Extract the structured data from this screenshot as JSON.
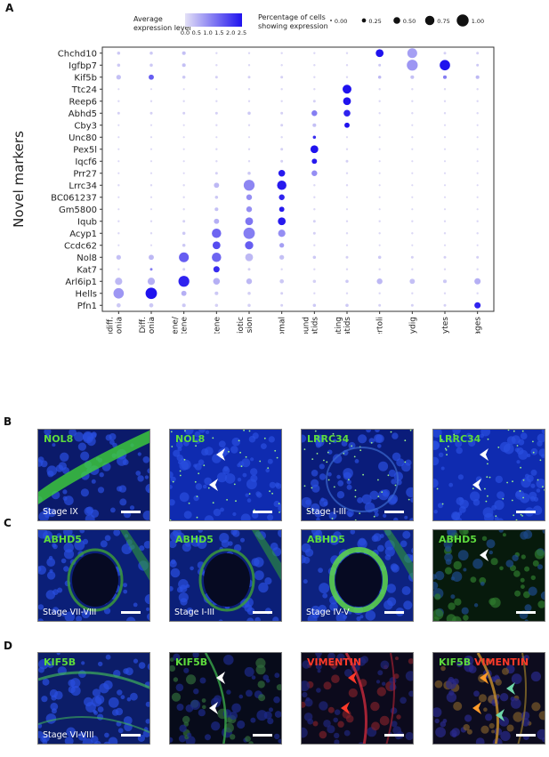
{
  "panels": {
    "a": "A",
    "b": "B",
    "c": "C",
    "d": "D"
  },
  "chart_data": {
    "type": "dotplot",
    "ylabel": "Novel markers",
    "legend_color_title": [
      "Average",
      "expression level"
    ],
    "legend_color_ticks": [
      "0.0",
      "0.5",
      "1.0",
      "1.5",
      "2.0",
      "2.5"
    ],
    "legend_size_title": [
      "Percentage of cells",
      "showing expression"
    ],
    "legend_size_ticks": [
      "0.00",
      "0.25",
      "0.50",
      "0.75",
      "1.00"
    ],
    "legend_size_values": [
      0.0,
      0.25,
      0.5,
      0.75,
      1.0
    ],
    "color_range": [
      0,
      2.5
    ],
    "colors": {
      "low": "#e4e1f6",
      "high": "#1f12ee"
    },
    "genes": [
      "Chchd10",
      "Igfbp7",
      "Kif5b",
      "Ttc24",
      "Reep6",
      "Abhd5",
      "Cby3",
      "Unc80",
      "Pex5l",
      "Iqcf6",
      "Prr27",
      "Lrrc34",
      "BC061237",
      "Gm5800",
      "Iqub",
      "Acyp1",
      "Ccdc62",
      "Nol8",
      "Kat7",
      "Arl6ip1",
      "Hells",
      "Pfn1"
    ],
    "categories": [
      [
        "Undiff.",
        "spermatogonia"
      ],
      [
        "Diff.",
        "spermatogonia"
      ],
      [
        "Leptotene/",
        "zygotene"
      ],
      [
        "Pachytene"
      ],
      [
        "Meiotic",
        "division"
      ],
      [
        "Acrosomal"
      ],
      [
        "Round",
        "spermatids"
      ],
      [
        "Elongating",
        "spermatids"
      ],
      [
        "Sertoli"
      ],
      [
        "Leydig"
      ],
      [
        "Telocytes"
      ],
      [
        "Macrophages"
      ]
    ],
    "percent": [
      [
        0.15,
        0.15,
        0.2,
        0.05,
        0.05,
        0.05,
        0.05,
        0.05,
        0.6,
        0.8,
        0.1,
        0.1
      ],
      [
        0.15,
        0.15,
        0.2,
        0.05,
        0.05,
        0.05,
        0.05,
        0.05,
        0.1,
        0.9,
        0.85,
        0.1
      ],
      [
        0.3,
        0.35,
        0.15,
        0.1,
        0.1,
        0.1,
        0.05,
        0.05,
        0.15,
        0.2,
        0.2,
        0.2
      ],
      [
        0.03,
        0.03,
        0.03,
        0.03,
        0.05,
        0.05,
        0.05,
        0.7,
        0.05,
        0.05,
        0.05,
        0.05
      ],
      [
        0.05,
        0.05,
        0.05,
        0.05,
        0.05,
        0.05,
        0.1,
        0.6,
        0.05,
        0.05,
        0.05,
        0.05
      ],
      [
        0.1,
        0.1,
        0.1,
        0.1,
        0.15,
        0.1,
        0.4,
        0.5,
        0.05,
        0.05,
        0.05,
        0.05
      ],
      [
        0.03,
        0.03,
        0.03,
        0.05,
        0.05,
        0.1,
        0.2,
        0.35,
        0.03,
        0.03,
        0.03,
        0.03
      ],
      [
        0.03,
        0.03,
        0.03,
        0.03,
        0.03,
        0.05,
        0.15,
        0.03,
        0.03,
        0.03,
        0.03,
        0.03
      ],
      [
        0.03,
        0.03,
        0.03,
        0.05,
        0.05,
        0.1,
        0.6,
        0.05,
        0.03,
        0.03,
        0.03,
        0.03
      ],
      [
        0.03,
        0.03,
        0.03,
        0.05,
        0.05,
        0.1,
        0.35,
        0.1,
        0.03,
        0.03,
        0.03,
        0.03
      ],
      [
        0.03,
        0.03,
        0.03,
        0.1,
        0.15,
        0.5,
        0.4,
        0.05,
        0.03,
        0.03,
        0.03,
        0.03
      ],
      [
        0.05,
        0.05,
        0.05,
        0.35,
        0.9,
        0.75,
        0.05,
        0.05,
        0.03,
        0.03,
        0.03,
        0.03
      ],
      [
        0.03,
        0.03,
        0.05,
        0.15,
        0.4,
        0.4,
        0.05,
        0.03,
        0.03,
        0.03,
        0.03,
        0.03
      ],
      [
        0.03,
        0.03,
        0.05,
        0.2,
        0.4,
        0.35,
        0.05,
        0.03,
        0.03,
        0.03,
        0.03,
        0.03
      ],
      [
        0.05,
        0.05,
        0.1,
        0.35,
        0.6,
        0.6,
        0.1,
        0.05,
        0.05,
        0.05,
        0.05,
        0.05
      ],
      [
        0.05,
        0.05,
        0.15,
        0.75,
        0.95,
        0.55,
        0.1,
        0.05,
        0.05,
        0.05,
        0.05,
        0.05
      ],
      [
        0.03,
        0.03,
        0.15,
        0.6,
        0.65,
        0.3,
        0.05,
        0.03,
        0.03,
        0.03,
        0.03,
        0.03
      ],
      [
        0.3,
        0.35,
        0.8,
        0.75,
        0.6,
        0.3,
        0.15,
        0.1,
        0.15,
        0.1,
        0.1,
        0.1
      ],
      [
        0.05,
        0.1,
        0.1,
        0.45,
        0.1,
        0.05,
        0.05,
        0.05,
        0.05,
        0.05,
        0.05,
        0.05
      ],
      [
        0.55,
        0.55,
        0.9,
        0.5,
        0.4,
        0.25,
        0.15,
        0.15,
        0.4,
        0.35,
        0.2,
        0.45
      ],
      [
        0.85,
        0.95,
        0.35,
        0.2,
        0.15,
        0.1,
        0.05,
        0.05,
        0.05,
        0.05,
        0.05,
        0.05
      ],
      [
        0.25,
        0.25,
        0.2,
        0.15,
        0.15,
        0.1,
        0.15,
        0.15,
        0.1,
        0.1,
        0.1,
        0.45
      ]
    ],
    "expression": [
      [
        0.3,
        0.3,
        0.4,
        0.1,
        0.1,
        0.1,
        0.1,
        0.1,
        2.5,
        0.8,
        0.2,
        0.2
      ],
      [
        0.3,
        0.3,
        0.4,
        0.1,
        0.1,
        0.1,
        0.1,
        0.1,
        0.3,
        0.9,
        2.5,
        0.3
      ],
      [
        0.4,
        1.6,
        0.3,
        0.2,
        0.2,
        0.2,
        0.1,
        0.1,
        0.5,
        0.4,
        1.2,
        0.5
      ],
      [
        0.1,
        0.1,
        0.1,
        0.1,
        0.1,
        0.1,
        0.1,
        2.5,
        0.1,
        0.1,
        0.1,
        0.1
      ],
      [
        0.1,
        0.1,
        0.1,
        0.1,
        0.1,
        0.1,
        0.2,
        2.5,
        0.1,
        0.1,
        0.1,
        0.1
      ],
      [
        0.2,
        0.2,
        0.2,
        0.2,
        0.3,
        0.2,
        1.2,
        2.3,
        0.1,
        0.1,
        0.1,
        0.1
      ],
      [
        0.1,
        0.1,
        0.1,
        0.1,
        0.1,
        0.2,
        0.4,
        2.5,
        0.1,
        0.1,
        0.1,
        0.1
      ],
      [
        0.1,
        0.1,
        0.1,
        0.1,
        0.1,
        0.1,
        2.2,
        0.1,
        0.1,
        0.1,
        0.1,
        0.1
      ],
      [
        0.1,
        0.1,
        0.1,
        0.1,
        0.1,
        0.2,
        2.5,
        0.1,
        0.1,
        0.1,
        0.1,
        0.1
      ],
      [
        0.1,
        0.1,
        0.1,
        0.1,
        0.1,
        0.2,
        2.4,
        0.2,
        0.1,
        0.1,
        0.1,
        0.1
      ],
      [
        0.1,
        0.1,
        0.1,
        0.2,
        0.3,
        2.4,
        1.0,
        0.1,
        0.1,
        0.1,
        0.1,
        0.1
      ],
      [
        0.1,
        0.1,
        0.1,
        0.5,
        1.1,
        2.4,
        0.1,
        0.1,
        0.1,
        0.1,
        0.1,
        0.1
      ],
      [
        0.1,
        0.1,
        0.1,
        0.3,
        1.0,
        2.3,
        0.1,
        0.1,
        0.1,
        0.1,
        0.1,
        0.1
      ],
      [
        0.1,
        0.1,
        0.1,
        0.4,
        1.0,
        2.4,
        0.1,
        0.1,
        0.1,
        0.1,
        0.1,
        0.1
      ],
      [
        0.1,
        0.1,
        0.2,
        0.6,
        1.3,
        2.4,
        0.2,
        0.1,
        0.1,
        0.1,
        0.1,
        0.1
      ],
      [
        0.1,
        0.1,
        0.3,
        1.5,
        1.2,
        1.0,
        0.2,
        0.1,
        0.1,
        0.1,
        0.1,
        0.1
      ],
      [
        0.1,
        0.1,
        0.3,
        1.8,
        1.6,
        0.8,
        0.1,
        0.1,
        0.1,
        0.1,
        0.1,
        0.1
      ],
      [
        0.4,
        0.5,
        1.6,
        1.5,
        0.5,
        0.4,
        0.3,
        0.2,
        0.3,
        0.2,
        0.2,
        0.2
      ],
      [
        0.1,
        1.2,
        0.2,
        2.2,
        0.2,
        0.1,
        0.1,
        0.1,
        0.1,
        0.1,
        0.1,
        0.1
      ],
      [
        0.5,
        0.6,
        2.3,
        0.6,
        0.5,
        0.3,
        0.2,
        0.3,
        0.5,
        0.4,
        0.3,
        0.6
      ],
      [
        0.9,
        2.5,
        0.6,
        0.3,
        0.2,
        0.2,
        0.1,
        0.1,
        0.1,
        0.1,
        0.1,
        0.1
      ],
      [
        0.3,
        0.3,
        0.3,
        0.2,
        0.2,
        0.2,
        0.3,
        0.3,
        0.2,
        0.2,
        0.2,
        2.3
      ]
    ]
  },
  "micrographs": {
    "b": [
      {
        "label": [
          {
            "text": "NOL8",
            "color": "green"
          }
        ],
        "stage": "Stage IX",
        "style": "tubule-bg",
        "arrows": []
      },
      {
        "label": [
          {
            "text": "NOL8",
            "color": "green"
          }
        ],
        "stage": "",
        "style": "nuclei-dots",
        "arrows": [
          "white",
          "white"
        ]
      },
      {
        "label": [
          {
            "text": "LRRC34",
            "color": "green"
          }
        ],
        "stage": "Stage I-III",
        "style": "tubule-dots",
        "arrows": []
      },
      {
        "label": [
          {
            "text": "LRRC34",
            "color": "green"
          }
        ],
        "stage": "",
        "style": "nuclei-dots",
        "arrows": [
          "white",
          "white"
        ]
      }
    ],
    "c": [
      {
        "label": [
          {
            "text": "ABHD5",
            "color": "green"
          }
        ],
        "stage": "Stage VII-VIII",
        "style": "lumen-green",
        "arrows": []
      },
      {
        "label": [
          {
            "text": "ABHD5",
            "color": "green"
          }
        ],
        "stage": "Stage I-III",
        "style": "lumen-green",
        "arrows": []
      },
      {
        "label": [
          {
            "text": "ABHD5",
            "color": "green"
          }
        ],
        "stage": "Stage IV-V",
        "style": "lumen-bright",
        "arrows": []
      },
      {
        "label": [
          {
            "text": "ABHD5",
            "color": "green"
          }
        ],
        "stage": "",
        "style": "green-cells",
        "arrows": [
          "white"
        ]
      }
    ],
    "d": [
      {
        "label": [
          {
            "text": "KIF5B",
            "color": "green"
          }
        ],
        "stage": "Stage VI-VIII",
        "style": "tubule-mixed",
        "arrows": []
      },
      {
        "label": [
          {
            "text": "KIF5B",
            "color": "green"
          }
        ],
        "stage": "",
        "style": "dark-green",
        "arrows": [
          "white",
          "white"
        ]
      },
      {
        "label": [
          {
            "text": "VIMENTIN",
            "color": "red"
          }
        ],
        "stage": "",
        "style": "dark-red",
        "arrows": [
          "red",
          "red"
        ]
      },
      {
        "label": [
          {
            "text": "KIF5B",
            "color": "green"
          },
          {
            "text": " VIMENTIN",
            "color": "red"
          }
        ],
        "stage": "",
        "style": "dark-merge",
        "arrows": [
          "orange",
          "orange",
          "teal",
          "teal"
        ]
      }
    ]
  }
}
